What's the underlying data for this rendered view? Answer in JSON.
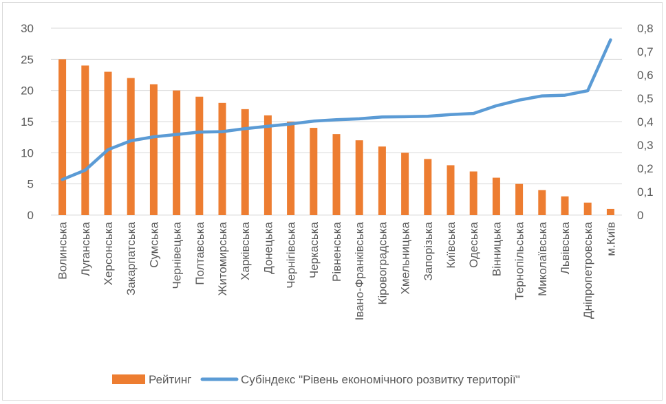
{
  "chart_data": {
    "type": "bar",
    "categories": [
      "Волинська",
      "Луганська",
      "Херсонська",
      "Закарпатська",
      "Сумська",
      "Чернівецька",
      "Полтавська",
      "Житомирська",
      "Харківська",
      "Донецька",
      "Чернігівська",
      "Черкаська",
      "Рівненська",
      "Івано-Франківська",
      "Кіровоградська",
      "Хмельницька",
      "Запорізька",
      "Київська",
      "Одеська",
      "Вінницька",
      "Тернопільська",
      "Миколаївська",
      "Львівська",
      "Дніпропетровська",
      "м.Київ"
    ],
    "series": [
      {
        "name": "Рейтинг",
        "type": "bar",
        "axis": "left",
        "color": "#ED7D31",
        "values": [
          25,
          24,
          23,
          22,
          21,
          20,
          19,
          18,
          17,
          16,
          15,
          14,
          13,
          12,
          11,
          10,
          9,
          8,
          7,
          6,
          5,
          4,
          3,
          2,
          1
        ]
      },
      {
        "name": "Субіндекс \"Рівень економічного розвитку території\"",
        "type": "line",
        "axis": "right",
        "color": "#5B9BD5",
        "values": [
          0.152,
          0.192,
          0.28,
          0.318,
          0.335,
          0.345,
          0.355,
          0.357,
          0.37,
          0.38,
          0.39,
          0.402,
          0.408,
          0.412,
          0.42,
          0.421,
          0.423,
          0.43,
          0.435,
          0.468,
          0.492,
          0.51,
          0.513,
          0.532,
          0.75
        ]
      }
    ],
    "y_left": {
      "min": 0,
      "max": 30,
      "ticks": [
        "0",
        "5",
        "10",
        "15",
        "20",
        "25",
        "30"
      ]
    },
    "y_right": {
      "min": 0,
      "max": 0.8,
      "ticks": [
        "0",
        "0,1",
        "0,2",
        "0,3",
        "0,4",
        "0,5",
        "0,6",
        "0,7",
        "0,8"
      ]
    },
    "grid": true,
    "legend_position": "bottom"
  }
}
